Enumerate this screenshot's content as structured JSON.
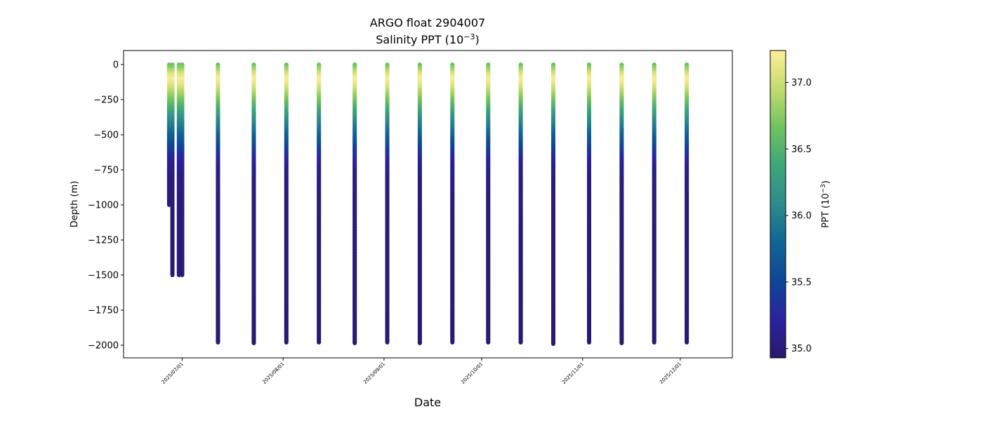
{
  "chart_data": {
    "type": "scatter",
    "title": "ARGO float 2904007",
    "subtitle_main": "Salinity PPT (10",
    "subtitle_exp": "−3",
    "subtitle_close": ")",
    "xlabel": "Date",
    "ylabel": "Depth (m)",
    "colorbar_label_main": "PPT (10",
    "colorbar_label_exp": "−3",
    "colorbar_label_close": ")",
    "colormap": "haline",
    "colormap_stops": [
      "#2a186c",
      "#2a23a0",
      "#0f4796",
      "#106593",
      "#2e8a8c",
      "#3fa67a",
      "#70c360",
      "#c3db6e",
      "#fdef9a"
    ],
    "ylim": [
      -2090,
      100
    ],
    "xlim": [
      "2025-06-13",
      "2025-12-17"
    ],
    "clim": [
      34.93,
      37.24
    ],
    "grid": false,
    "y_ticks": [
      0,
      -250,
      -500,
      -750,
      -1000,
      -1250,
      -1500,
      -1750,
      -2000
    ],
    "y_tick_labels": [
      "0",
      "−250",
      "−500",
      "−750",
      "−1000",
      "−1250",
      "−1500",
      "−1750",
      "−2000"
    ],
    "x_ticks": [
      "2025-07-01",
      "2025-08-01",
      "2025-09-01",
      "2025-10-01",
      "2025-11-01",
      "2025-12-01"
    ],
    "x_tick_labels": [
      "2025/07/01",
      "2025/08/01",
      "2025/09/01",
      "2025/10/01",
      "2025/11/01",
      "2025/12/01"
    ],
    "colorbar_ticks": [
      35.0,
      35.5,
      36.0,
      36.5,
      37.0
    ],
    "colorbar_tick_labels": [
      "35.0",
      "35.5",
      "36.0",
      "36.5",
      "37.0"
    ],
    "profiles": [
      {
        "date": "2025-06-27",
        "max_depth": 1000
      },
      {
        "date": "2025-06-28",
        "max_depth": 1500
      },
      {
        "date": "2025-06-30",
        "max_depth": 1500
      },
      {
        "date": "2025-07-01",
        "max_depth": 1500
      },
      {
        "date": "2025-07-12",
        "max_depth": 1980
      },
      {
        "date": "2025-07-23",
        "max_depth": 1985
      },
      {
        "date": "2025-08-02",
        "max_depth": 1980
      },
      {
        "date": "2025-08-12",
        "max_depth": 1980
      },
      {
        "date": "2025-08-23",
        "max_depth": 1985
      },
      {
        "date": "2025-09-02",
        "max_depth": 1980
      },
      {
        "date": "2025-09-12",
        "max_depth": 1985
      },
      {
        "date": "2025-09-22",
        "max_depth": 1980
      },
      {
        "date": "2025-10-03",
        "max_depth": 1980
      },
      {
        "date": "2025-10-13",
        "max_depth": 1980
      },
      {
        "date": "2025-10-23",
        "max_depth": 1990
      },
      {
        "date": "2025-11-03",
        "max_depth": 1980
      },
      {
        "date": "2025-11-13",
        "max_depth": 1985
      },
      {
        "date": "2025-11-23",
        "max_depth": 1980
      },
      {
        "date": "2025-12-03",
        "max_depth": 1980
      }
    ],
    "salinity_profile": {
      "depths": [
        0,
        20,
        50,
        80,
        110,
        150,
        200,
        250,
        300,
        400,
        500,
        600,
        650,
        700,
        800,
        1000,
        1500,
        2000
      ],
      "salinity": [
        36.6,
        36.7,
        36.9,
        37.1,
        37.2,
        37.1,
        36.9,
        36.7,
        36.5,
        36.1,
        35.8,
        35.45,
        35.3,
        35.15,
        35.05,
        35.0,
        34.98,
        34.96
      ]
    }
  }
}
